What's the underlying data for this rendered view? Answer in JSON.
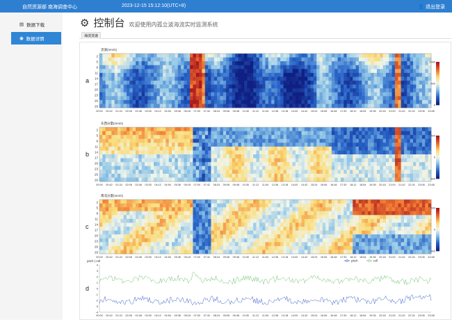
{
  "topbar": {
    "org": "自然资源部 南海调查中心",
    "datetime": "2023-12-15  15:12:10(UTC+8)",
    "logout": "退出登录",
    "bg_color": "#2f7fd1"
  },
  "sidebar": {
    "items": [
      {
        "label": "数据下载",
        "icon": "file-icon",
        "active": false
      },
      {
        "label": "数据详情",
        "icon": "eye-icon",
        "active": true
      }
    ],
    "active_color": "#2f86d6"
  },
  "header": {
    "title": "控制台",
    "subtitle": "欢迎使用内孤立波海流实时监测系统",
    "icon": "gear-icon"
  },
  "tabs": [
    {
      "label": "海流流速"
    }
  ],
  "chart_data": [
    {
      "panel": "a",
      "type": "heatmap",
      "title": "流速(mm/s)",
      "y_ticks": [
        "2",
        "5",
        "8",
        "11",
        "14",
        "17",
        "20",
        "23",
        "26",
        "29"
      ],
      "x_ticks": [
        "00:00",
        "00:42",
        "01:24",
        "02:06",
        "02:48",
        "03:30",
        "04:12",
        "04:54",
        "05:36",
        "06:18",
        "07:00",
        "07:42",
        "08:24",
        "09:06",
        "09:48",
        "10:30",
        "11:12",
        "11:54",
        "12:36",
        "13:18",
        "14:00",
        "14:42",
        "15:24",
        "16:06",
        "16:48",
        "17:30",
        "18:12",
        "18:54",
        "19:36",
        "20:18",
        "21:00",
        "21:42",
        "22:24",
        "23:06",
        "23:48"
      ],
      "colorbar": {
        "ticks": [
          "1000",
          "500",
          "0"
        ],
        "range": [
          0,
          1000
        ]
      }
    },
    {
      "panel": "b",
      "type": "heatmap",
      "title": "东西分量(mm/s)",
      "y_ticks": [
        "2",
        "5",
        "8",
        "11",
        "14",
        "17",
        "20",
        "23",
        "26",
        "29"
      ],
      "x_ticks": [
        "00:00",
        "00:42",
        "01:24",
        "02:06",
        "02:48",
        "03:30",
        "04:12",
        "04:54",
        "05:36",
        "06:18",
        "07:00",
        "07:42",
        "08:24",
        "09:06",
        "09:48",
        "10:30",
        "11:12",
        "11:54",
        "12:36",
        "13:18",
        "14:00",
        "14:42",
        "15:24",
        "16:06",
        "16:48",
        "17:30",
        "18:12",
        "18:54",
        "19:36",
        "20:18",
        "21:00",
        "21:42",
        "22:24",
        "23:06",
        "23:48"
      ],
      "colorbar": {
        "ticks": [
          "500",
          "0",
          "-500"
        ],
        "range": [
          -500,
          500
        ]
      }
    },
    {
      "panel": "c",
      "type": "heatmap",
      "title": "南北分量(mm/s)",
      "y_ticks": [
        "2",
        "5",
        "8",
        "11",
        "14",
        "17",
        "20",
        "23",
        "26",
        "29"
      ],
      "x_ticks": [
        "00:00",
        "00:42",
        "01:24",
        "02:06",
        "02:48",
        "03:30",
        "04:12",
        "04:54",
        "05:36",
        "06:18",
        "07:00",
        "07:42",
        "08:24",
        "09:06",
        "09:48",
        "10:30",
        "11:12",
        "11:54",
        "12:36",
        "13:18",
        "14:00",
        "14:42",
        "15:24",
        "16:06",
        "16:48",
        "17:30",
        "18:12",
        "18:54",
        "19:36",
        "20:18",
        "21:00",
        "21:42",
        "22:24",
        "23:06",
        "23:48"
      ],
      "colorbar": {
        "ticks": [
          "500",
          "0",
          "-500"
        ],
        "range": [
          -500,
          500
        ]
      }
    },
    {
      "panel": "d",
      "type": "line",
      "title": "pitch | roll",
      "ylim": [
        -4,
        4
      ],
      "y_ticks": [
        "4",
        "3",
        "2",
        "1",
        "0",
        "-1",
        "-2",
        "-3",
        "-4"
      ],
      "x_ticks": [
        "00:00",
        "00:42",
        "01:24",
        "02:06",
        "02:48",
        "03:30",
        "04:12",
        "04:54",
        "05:36",
        "06:18",
        "07:00",
        "07:42",
        "08:24",
        "09:06",
        "09:48",
        "10:30",
        "11:12",
        "11:54",
        "12:36",
        "13:18",
        "14:00",
        "14:42",
        "15:24",
        "16:06",
        "16:48",
        "17:30",
        "18:12",
        "18:54",
        "19:36",
        "20:18",
        "21:00",
        "21:42",
        "22:24",
        "23:06",
        "23:48"
      ],
      "legend": {
        "position": "top-right"
      },
      "series": [
        {
          "name": "pitch",
          "color": "#3a5fc8",
          "mean": -2.0
        },
        {
          "name": "roll",
          "color": "#6cc26c",
          "mean": 1.5
        }
      ]
    }
  ]
}
